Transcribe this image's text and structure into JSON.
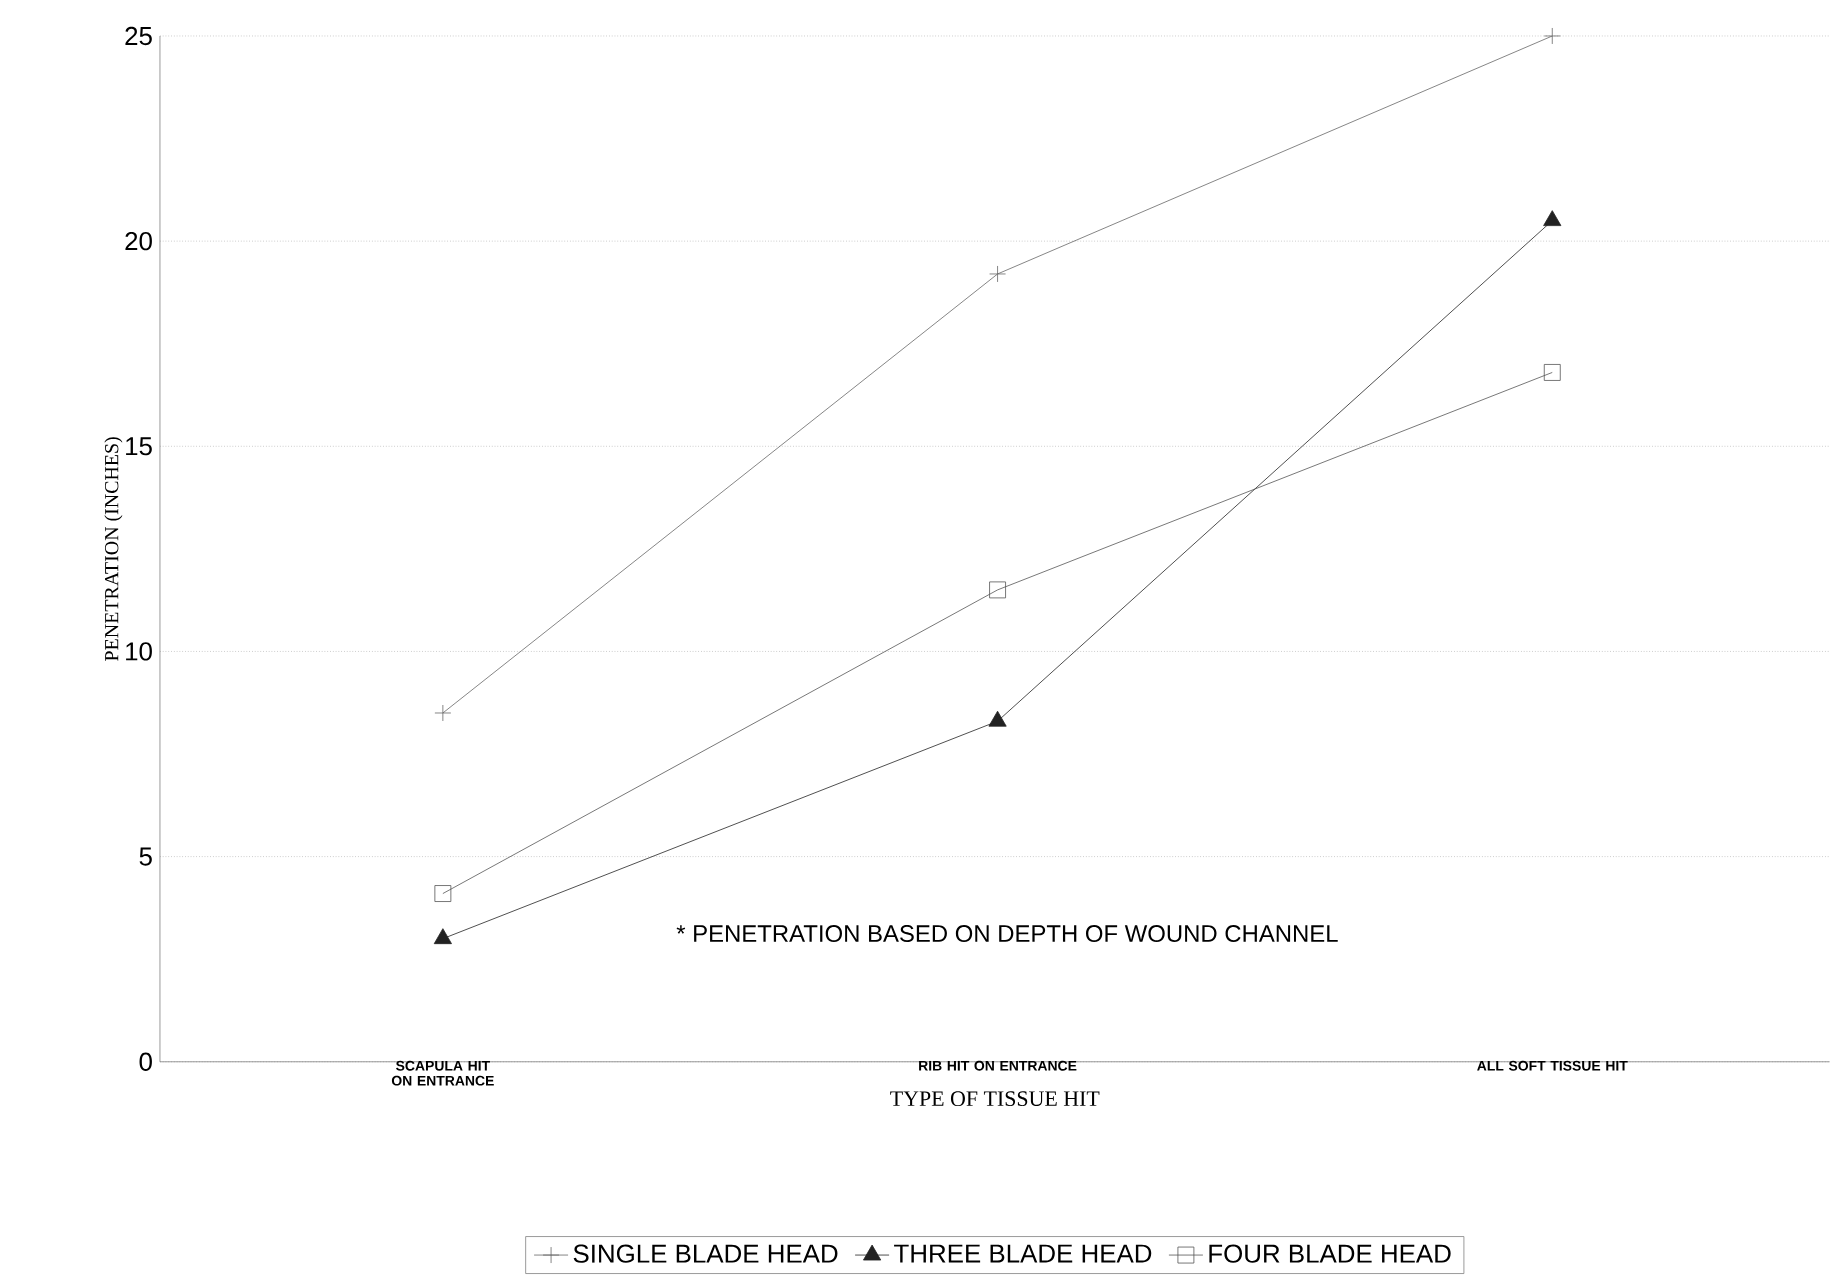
{
  "chart_data": {
    "type": "line",
    "xlabel": "TYPE OF TISSUE HIT",
    "ylabel": "PENETRATION (INCHES)",
    "categories": [
      "SCAPULA HIT ON ENTRANCE",
      "RIB HIT ON ENTRANCE",
      "ALL SOFT TISSUE HIT"
    ],
    "series": [
      {
        "name": "SINGLE BLADE HEAD",
        "color": "#666666",
        "marker": "cross",
        "values": [
          8.5,
          19.2,
          25.0
        ]
      },
      {
        "name": "THREE BLADE HEAD",
        "color": "#222222",
        "marker": "triangle",
        "values": [
          3.0,
          8.3,
          20.5
        ]
      },
      {
        "name": "FOUR BLADE HEAD",
        "color": "#555555",
        "marker": "square",
        "values": [
          4.1,
          11.5,
          16.8
        ]
      }
    ],
    "ylim": [
      0,
      25
    ],
    "yticks": [
      0,
      5,
      10,
      15,
      20,
      25
    ],
    "grid": "y",
    "legend": "bottom",
    "line_style": "solid",
    "annotations": [
      "* PENETRATION BASED ON DEPTH OF WOUND CHANNEL"
    ]
  }
}
